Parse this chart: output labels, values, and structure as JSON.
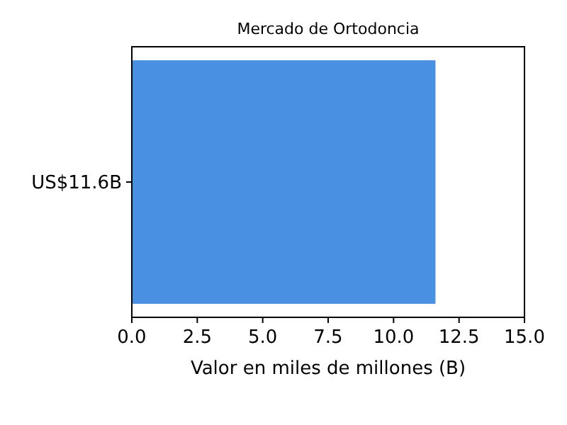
{
  "chart_data": {
    "type": "bar",
    "orientation": "horizontal",
    "title": "Mercado de Ortodoncia",
    "xlabel": "Valor en miles de millones (B)",
    "categories": [
      "US$11.6B"
    ],
    "values": [
      11.6
    ],
    "color": "#4a90e2",
    "xlim": [
      0,
      15
    ],
    "xticks": [
      {
        "value": 0,
        "label": "0.0"
      },
      2.5,
      {
        "value": 5,
        "label": "5.0"
      },
      7.5,
      {
        "value": 10,
        "label": "10.0"
      },
      12.5,
      {
        "value": 15,
        "label": "15.0"
      }
    ],
    "grid": false
  }
}
